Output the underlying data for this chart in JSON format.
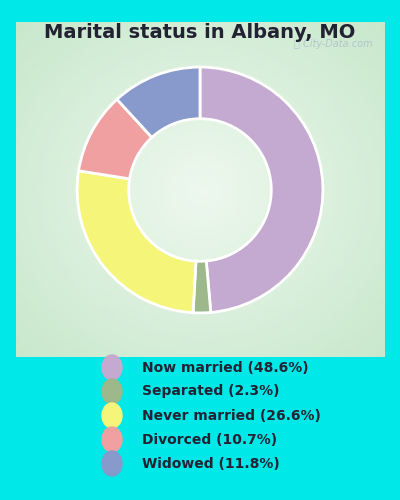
{
  "title": "Marital status in Albany, MO",
  "pie_order": [
    "Now married",
    "Separated",
    "Never married",
    "Divorced",
    "Widowed"
  ],
  "pie_values": [
    48.6,
    2.3,
    26.6,
    10.7,
    11.8
  ],
  "pie_colors": [
    "#c4aad0",
    "#9db88a",
    "#f5f57a",
    "#f0a0a0",
    "#8899cc"
  ],
  "legend_labels": [
    "Now married (48.6%)",
    "Separated (2.3%)",
    "Never married (26.6%)",
    "Divorced (10.7%)",
    "Widowed (11.8%)"
  ],
  "legend_colors": [
    "#c4aad0",
    "#9db88a",
    "#f5f57a",
    "#f0a0a0",
    "#8899cc"
  ],
  "bg_cyan": "#00e8e8",
  "bg_chart_edge": "#c8e8cc",
  "bg_chart_center": "#eef8ee",
  "title_color": "#222233",
  "watermark": "City-Data.com",
  "start_angle": 90,
  "title_fontsize": 14,
  "legend_fontsize": 10
}
